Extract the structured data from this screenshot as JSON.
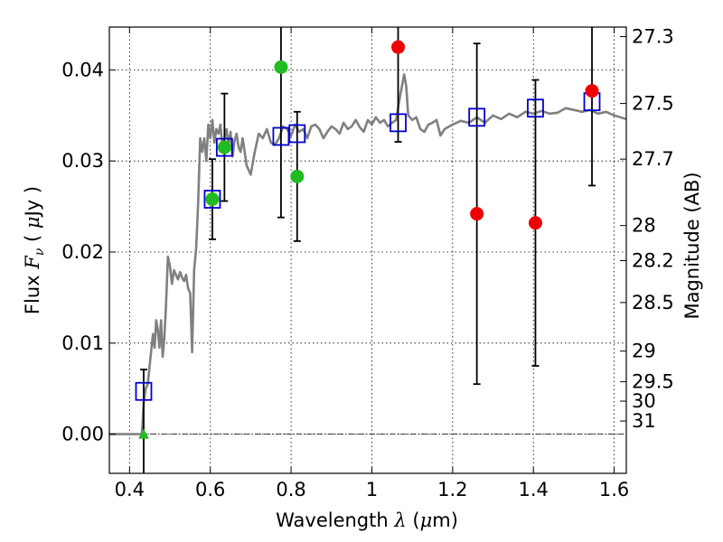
{
  "chart_data": {
    "type": "scatter",
    "xlabel_text": "Wavelength",
    "xlabel_symbol": "λ",
    "xlabel_unit_open": "(",
    "xlabel_unit_mu": "μ",
    "xlabel_unit_rest": "m)",
    "ylabel_text": "Flux",
    "ylabel_symbol": "F",
    "ylabel_sub": "ν",
    "ylabel_unit_open": "(",
    "ylabel_unit_mu": "μ",
    "ylabel_unit_rest": "Jy )",
    "y2label": "Magnitude (AB)",
    "xlim": [
      0.35,
      1.63
    ],
    "ylim": [
      -0.0043,
      0.0447
    ],
    "grid": true,
    "x_ticks": [
      0.4,
      0.6,
      0.8,
      1.0,
      1.2,
      1.4,
      1.6
    ],
    "x_tick_labels": [
      "0.4",
      "0.6",
      "0.8",
      "1",
      "1.2",
      "1.4",
      "1.6"
    ],
    "y_ticks": [
      0.0,
      0.01,
      0.02,
      0.03,
      0.04
    ],
    "y_tick_labels": [
      "0.00",
      "0.01",
      "0.02",
      "0.03",
      "0.04"
    ],
    "mag_ticks": [
      27.3,
      27.5,
      27.7,
      28,
      28.2,
      28.5,
      29,
      29.5,
      30,
      31
    ],
    "mag_tick_labels": [
      "27.3",
      "27.5",
      "27.7",
      "28",
      "28.2",
      "28.5",
      "29",
      "29.5",
      "30",
      "31"
    ],
    "colors": {
      "model": "#808080",
      "model_phot": "#0000cc",
      "detected": "#22bb22",
      "low_significance": "#ee0000",
      "errorbar": "#000000"
    },
    "series": [
      {
        "kind": "model_spectrum",
        "x": [
          0.35,
          0.43,
          0.432,
          0.435,
          0.44,
          0.445,
          0.452,
          0.458,
          0.462,
          0.466,
          0.47,
          0.474,
          0.478,
          0.482,
          0.486,
          0.49,
          0.495,
          0.5,
          0.505,
          0.51,
          0.515,
          0.52,
          0.525,
          0.53,
          0.535,
          0.54,
          0.545,
          0.55,
          0.555,
          0.56,
          0.565,
          0.57,
          0.575,
          0.58,
          0.585,
          0.59,
          0.595,
          0.6,
          0.605,
          0.61,
          0.615,
          0.62,
          0.625,
          0.63,
          0.635,
          0.64,
          0.645,
          0.65,
          0.655,
          0.66,
          0.665,
          0.67,
          0.675,
          0.68,
          0.69,
          0.7,
          0.71,
          0.72,
          0.73,
          0.74,
          0.75,
          0.76,
          0.77,
          0.78,
          0.79,
          0.8,
          0.81,
          0.82,
          0.83,
          0.84,
          0.85,
          0.86,
          0.87,
          0.88,
          0.89,
          0.9,
          0.91,
          0.92,
          0.93,
          0.94,
          0.95,
          0.96,
          0.97,
          0.98,
          0.99,
          1.0,
          1.01,
          1.02,
          1.03,
          1.04,
          1.05,
          1.06,
          1.07,
          1.08,
          1.085,
          1.09,
          1.1,
          1.11,
          1.12,
          1.13,
          1.14,
          1.15,
          1.16,
          1.17,
          1.18,
          1.2,
          1.22,
          1.24,
          1.26,
          1.28,
          1.3,
          1.32,
          1.34,
          1.36,
          1.38,
          1.4,
          1.42,
          1.44,
          1.46,
          1.48,
          1.5,
          1.52,
          1.54,
          1.56,
          1.58,
          1.6,
          1.63
        ],
        "y": [
          0.0,
          0.0,
          0.001,
          0.0035,
          0.005,
          0.0055,
          0.0085,
          0.011,
          0.0095,
          0.0125,
          0.0115,
          0.0095,
          0.0125,
          0.0085,
          0.0105,
          0.014,
          0.0195,
          0.0185,
          0.0165,
          0.018,
          0.0175,
          0.017,
          0.0178,
          0.0172,
          0.0168,
          0.0175,
          0.016,
          0.0155,
          0.009,
          0.018,
          0.0205,
          0.0255,
          0.0325,
          0.031,
          0.0325,
          0.03,
          0.034,
          0.0325,
          0.0345,
          0.032,
          0.0335,
          0.033,
          0.034,
          0.0315,
          0.0325,
          0.0335,
          0.0318,
          0.0332,
          0.0305,
          0.0322,
          0.033,
          0.0315,
          0.031,
          0.0325,
          0.0295,
          0.0285,
          0.031,
          0.033,
          0.0325,
          0.0335,
          0.032,
          0.0318,
          0.0325,
          0.0338,
          0.0335,
          0.0328,
          0.034,
          0.0332,
          0.0335,
          0.0325,
          0.0338,
          0.034,
          0.0335,
          0.0325,
          0.0332,
          0.0338,
          0.0335,
          0.033,
          0.0342,
          0.0335,
          0.0338,
          0.0345,
          0.0337,
          0.0332,
          0.0345,
          0.034,
          0.0348,
          0.0342,
          0.0345,
          0.0338,
          0.0342,
          0.0345,
          0.0372,
          0.0395,
          0.0382,
          0.035,
          0.0345,
          0.0348,
          0.0335,
          0.0332,
          0.034,
          0.0342,
          0.0345,
          0.0328,
          0.0335,
          0.034,
          0.0344,
          0.0342,
          0.0348,
          0.0342,
          0.035,
          0.0346,
          0.0352,
          0.0348,
          0.0354,
          0.0352,
          0.0355,
          0.0352,
          0.0353,
          0.0358,
          0.0356,
          0.0354,
          0.0356,
          0.0352,
          0.0354,
          0.035,
          0.0346
        ]
      },
      {
        "kind": "model_photometry",
        "marker": "open-square",
        "x": [
          0.435,
          0.605,
          0.635,
          0.775,
          0.815,
          1.065,
          1.26,
          1.405,
          1.545
        ],
        "y": [
          0.0047,
          0.0258,
          0.0315,
          0.0327,
          0.033,
          0.0342,
          0.0348,
          0.0358,
          0.0365
        ]
      },
      {
        "kind": "observed_detected",
        "marker": "filled-circle",
        "x": [
          0.605,
          0.635,
          0.775,
          0.815
        ],
        "y": [
          0.0258,
          0.0315,
          0.0403,
          0.0283
        ],
        "yerr": [
          0.0044,
          0.0059,
          0.0165,
          0.0071
        ]
      },
      {
        "kind": "observed_low_significance",
        "marker": "filled-circle",
        "x": [
          1.065,
          1.26,
          1.405,
          1.545
        ],
        "y": [
          0.0425,
          0.0242,
          0.0232,
          0.0377
        ],
        "yerr": [
          0.0104,
          0.0187,
          0.0157,
          0.0104
        ]
      },
      {
        "kind": "upper_limit",
        "marker": "triangle",
        "x": [
          0.435
        ],
        "y": [
          0.0
        ],
        "yerr": [
          0.0071
        ]
      }
    ]
  }
}
